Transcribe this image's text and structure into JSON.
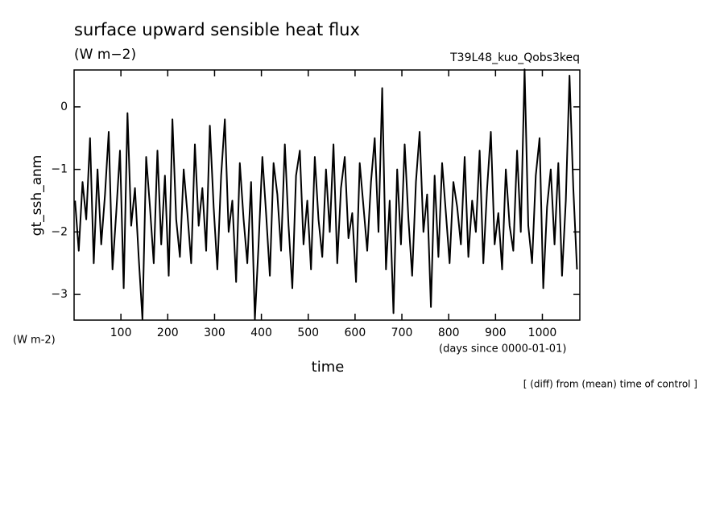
{
  "chart_data": {
    "type": "line",
    "title": "surface upward sensible heat flux",
    "subtitle": "(W m−2)",
    "run_name": "T39L48_kuo_Qobs3keq",
    "ylabel": "gt_ssh_anm",
    "y_unit": "(W m-2)",
    "xlabel": "time",
    "x_unit": "(days since 0000-01-01)",
    "note": "[ (diff) from (mean) time of control ]",
    "xlim": [
      0,
      1080
    ],
    "ylim": [
      -3.41,
      0.59
    ],
    "xticks": [
      100,
      200,
      300,
      400,
      500,
      600,
      700,
      800,
      900,
      1000
    ],
    "yticks": [
      {
        "value": -3,
        "label": "−3"
      },
      {
        "value": -2,
        "label": "−2"
      },
      {
        "value": -1,
        "label": "−1"
      },
      0
    ],
    "x": [
      2,
      10,
      18,
      26,
      34,
      42,
      50,
      58,
      66,
      74,
      82,
      90,
      98,
      106,
      114,
      122,
      130,
      138,
      146,
      154,
      162,
      170,
      178,
      186,
      194,
      202,
      210,
      218,
      226,
      234,
      242,
      250,
      258,
      266,
      274,
      282,
      290,
      298,
      306,
      314,
      322,
      330,
      338,
      346,
      354,
      362,
      370,
      378,
      386,
      394,
      402,
      410,
      418,
      426,
      434,
      442,
      450,
      458,
      466,
      474,
      482,
      490,
      498,
      506,
      514,
      522,
      530,
      538,
      546,
      554,
      562,
      570,
      578,
      586,
      594,
      602,
      610,
      618,
      626,
      634,
      642,
      650,
      658,
      666,
      674,
      682,
      690,
      698,
      706,
      714,
      722,
      730,
      738,
      746,
      754,
      762,
      770,
      778,
      786,
      794,
      802,
      810,
      818,
      826,
      834,
      842,
      850,
      858,
      866,
      874,
      882,
      890,
      898,
      906,
      914,
      922,
      930,
      938,
      946,
      954,
      962,
      970,
      978,
      986,
      994,
      1002,
      1010,
      1018,
      1026,
      1034,
      1042,
      1050,
      1058,
      1066,
      1074
    ],
    "series": [
      {
        "color": "#000000",
        "values": [
          -1.5,
          -2.3,
          -1.2,
          -1.8,
          -0.5,
          -2.5,
          -1.0,
          -2.2,
          -1.4,
          -0.4,
          -2.6,
          -1.7,
          -0.7,
          -2.9,
          -0.1,
          -1.9,
          -1.3,
          -2.4,
          -3.4,
          -0.8,
          -1.6,
          -2.5,
          -0.7,
          -2.2,
          -1.1,
          -2.7,
          -0.2,
          -1.8,
          -2.4,
          -1.0,
          -1.7,
          -2.5,
          -0.6,
          -1.9,
          -1.3,
          -2.3,
          -0.3,
          -1.6,
          -2.6,
          -1.1,
          -0.2,
          -2.0,
          -1.5,
          -2.8,
          -0.9,
          -1.8,
          -2.5,
          -1.2,
          -3.4,
          -2.2,
          -0.8,
          -1.7,
          -2.7,
          -0.9,
          -1.4,
          -2.3,
          -0.6,
          -1.9,
          -2.9,
          -1.1,
          -0.7,
          -2.2,
          -1.5,
          -2.6,
          -0.8,
          -1.8,
          -2.4,
          -1.0,
          -2.0,
          -0.6,
          -2.5,
          -1.3,
          -0.8,
          -2.1,
          -1.7,
          -2.8,
          -0.9,
          -1.6,
          -2.3,
          -1.2,
          -0.5,
          -2.0,
          0.3,
          -2.6,
          -1.5,
          -3.3,
          -1.0,
          -2.2,
          -0.6,
          -1.8,
          -2.7,
          -1.2,
          -0.4,
          -2.0,
          -1.4,
          -3.2,
          -1.1,
          -2.4,
          -0.9,
          -1.7,
          -2.5,
          -1.2,
          -1.6,
          -2.2,
          -0.8,
          -2.4,
          -1.5,
          -2.0,
          -0.7,
          -2.5,
          -1.3,
          -0.4,
          -2.2,
          -1.7,
          -2.6,
          -1.0,
          -1.9,
          -2.3,
          -0.7,
          -2.0,
          0.6,
          -1.9,
          -2.5,
          -1.1,
          -0.5,
          -2.9,
          -1.6,
          -1.0,
          -2.2,
          -0.9,
          -2.7,
          -1.5,
          0.5,
          -1.3,
          -2.6
        ]
      }
    ]
  }
}
